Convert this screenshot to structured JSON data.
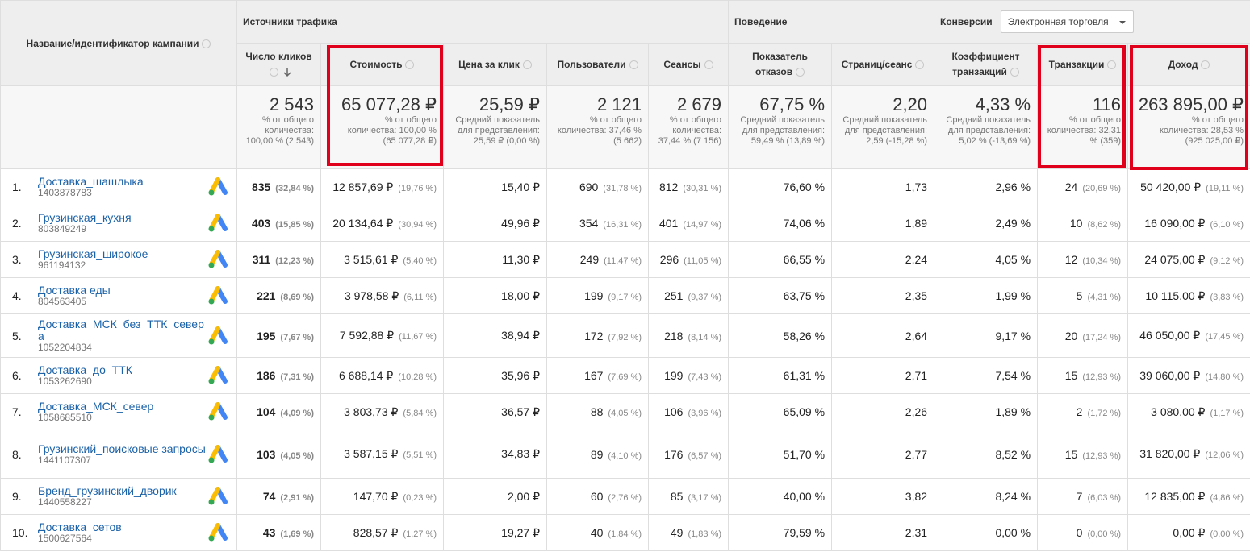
{
  "header": {
    "name_column": "Название/идентификатор кампании",
    "groups": [
      "Источники трафика",
      "Поведение",
      "Конверсии"
    ],
    "dropdown": "Электронная торговля",
    "columns": [
      "Число кликов",
      "Стоимость",
      "Цена за клик",
      "Пользователи",
      "Сеансы",
      "Показатель отказов",
      "Страниц/сеанс",
      "Коэффициент транзакций",
      "Транзакции",
      "Доход"
    ]
  },
  "totals": [
    {
      "value": "2 543",
      "note": "% от общего количества: 100,00 % (2 543)"
    },
    {
      "value": "65 077,28 ₽",
      "note": "% от общего количества: 100,00 % (65 077,28 ₽)"
    },
    {
      "value": "25,59 ₽",
      "note": "Средний показатель для представления: 25,59 ₽ (0,00 %)"
    },
    {
      "value": "2 121",
      "note": "% от общего количества: 37,46 % (5 662)"
    },
    {
      "value": "2 679",
      "note": "% от общего количества: 37,44 % (7 156)"
    },
    {
      "value": "67,75 %",
      "note": "Средний показатель для представления: 59,49 % (13,89 %)"
    },
    {
      "value": "2,20",
      "note": "Средний показатель для представления: 2,59 (-15,28 %)"
    },
    {
      "value": "4,33 %",
      "note": "Средний показатель для представления: 5,02 % (-13,69 %)"
    },
    {
      "value": "116",
      "note": "% от общего количества: 32,31 % (359)"
    },
    {
      "value": "263 895,00 ₽",
      "note": "% от общего количества: 28,53 % (925 025,00 ₽)"
    }
  ],
  "rows": [
    {
      "index": "1.",
      "name": "Доставка_шашлыка",
      "id": "1403878783",
      "cells": [
        [
          "835",
          "(32,84 %)"
        ],
        [
          "12 857,69 ₽",
          "(19,76 %)"
        ],
        [
          "15,40 ₽"
        ],
        [
          "690",
          "(31,78 %)"
        ],
        [
          "812",
          "(30,31 %)"
        ],
        [
          "76,60 %"
        ],
        [
          "1,73"
        ],
        [
          "2,96 %"
        ],
        [
          "24",
          "(20,69 %)"
        ],
        [
          "50 420,00 ₽",
          "(19,11 %)"
        ]
      ]
    },
    {
      "index": "2.",
      "name": "Грузинская_кухня",
      "id": "803849249",
      "cells": [
        [
          "403",
          "(15,85 %)"
        ],
        [
          "20 134,64 ₽",
          "(30,94 %)"
        ],
        [
          "49,96 ₽"
        ],
        [
          "354",
          "(16,31 %)"
        ],
        [
          "401",
          "(14,97 %)"
        ],
        [
          "74,06 %"
        ],
        [
          "1,89"
        ],
        [
          "2,49 %"
        ],
        [
          "10",
          "(8,62 %)"
        ],
        [
          "16 090,00 ₽",
          "(6,10 %)"
        ]
      ]
    },
    {
      "index": "3.",
      "name": "Грузинская_широкое",
      "id": "961194132",
      "cells": [
        [
          "311",
          "(12,23 %)"
        ],
        [
          "3 515,61 ₽",
          "(5,40 %)"
        ],
        [
          "11,30 ₽"
        ],
        [
          "249",
          "(11,47 %)"
        ],
        [
          "296",
          "(11,05 %)"
        ],
        [
          "66,55 %"
        ],
        [
          "2,24"
        ],
        [
          "4,05 %"
        ],
        [
          "12",
          "(10,34 %)"
        ],
        [
          "24 075,00 ₽",
          "(9,12 %)"
        ]
      ]
    },
    {
      "index": "4.",
      "name": "Доставка еды",
      "id": "804563405",
      "cells": [
        [
          "221",
          "(8,69 %)"
        ],
        [
          "3 978,58 ₽",
          "(6,11 %)"
        ],
        [
          "18,00 ₽"
        ],
        [
          "199",
          "(9,17 %)"
        ],
        [
          "251",
          "(9,37 %)"
        ],
        [
          "63,75 %"
        ],
        [
          "2,35"
        ],
        [
          "1,99 %"
        ],
        [
          "5",
          "(4,31 %)"
        ],
        [
          "10 115,00 ₽",
          "(3,83 %)"
        ]
      ]
    },
    {
      "index": "5.",
      "name": "Доставка_МСК_без_ТТК_севера",
      "id": "1052204834",
      "cells": [
        [
          "195",
          "(7,67 %)"
        ],
        [
          "7 592,88 ₽",
          "(11,67 %)"
        ],
        [
          "38,94 ₽"
        ],
        [
          "172",
          "(7,92 %)"
        ],
        [
          "218",
          "(8,14 %)"
        ],
        [
          "58,26 %"
        ],
        [
          "2,64"
        ],
        [
          "9,17 %"
        ],
        [
          "20",
          "(17,24 %)"
        ],
        [
          "46 050,00 ₽",
          "(17,45 %)"
        ]
      ]
    },
    {
      "index": "6.",
      "name": "Доставка_до_ТТК",
      "id": "1053262690",
      "cells": [
        [
          "186",
          "(7,31 %)"
        ],
        [
          "6 688,14 ₽",
          "(10,28 %)"
        ],
        [
          "35,96 ₽"
        ],
        [
          "167",
          "(7,69 %)"
        ],
        [
          "199",
          "(7,43 %)"
        ],
        [
          "61,31 %"
        ],
        [
          "2,71"
        ],
        [
          "7,54 %"
        ],
        [
          "15",
          "(12,93 %)"
        ],
        [
          "39 060,00 ₽",
          "(14,80 %)"
        ]
      ]
    },
    {
      "index": "7.",
      "name": "Доставка_МСК_север",
      "id": "1058685510",
      "cells": [
        [
          "104",
          "(4,09 %)"
        ],
        [
          "3 803,73 ₽",
          "(5,84 %)"
        ],
        [
          "36,57 ₽"
        ],
        [
          "88",
          "(4,05 %)"
        ],
        [
          "106",
          "(3,96 %)"
        ],
        [
          "65,09 %"
        ],
        [
          "2,26"
        ],
        [
          "1,89 %"
        ],
        [
          "2",
          "(1,72 %)"
        ],
        [
          "3 080,00 ₽",
          "(1,17 %)"
        ]
      ]
    },
    {
      "index": "8.",
      "name": "Грузинский_поисковые запросы",
      "id": "1441107307",
      "cells": [
        [
          "103",
          "(4,05 %)"
        ],
        [
          "3 587,15 ₽",
          "(5,51 %)"
        ],
        [
          "34,83 ₽"
        ],
        [
          "89",
          "(4,10 %)"
        ],
        [
          "176",
          "(6,57 %)"
        ],
        [
          "51,70 %"
        ],
        [
          "2,77"
        ],
        [
          "8,52 %"
        ],
        [
          "15",
          "(12,93 %)"
        ],
        [
          "31 820,00 ₽",
          "(12,06 %)"
        ]
      ]
    },
    {
      "index": "9.",
      "name": "Бренд_грузинский_дворик",
      "id": "1440558227",
      "cells": [
        [
          "74",
          "(2,91 %)"
        ],
        [
          "147,70 ₽",
          "(0,23 %)"
        ],
        [
          "2,00 ₽"
        ],
        [
          "60",
          "(2,76 %)"
        ],
        [
          "85",
          "(3,17 %)"
        ],
        [
          "40,00 %"
        ],
        [
          "3,82"
        ],
        [
          "8,24 %"
        ],
        [
          "7",
          "(6,03 %)"
        ],
        [
          "12 835,00 ₽",
          "(4,86 %)"
        ]
      ]
    },
    {
      "index": "10.",
      "name": "Доставка_сетов",
      "id": "1500627564",
      "cells": [
        [
          "43",
          "(1,69 %)"
        ],
        [
          "828,57 ₽",
          "(1,27 %)"
        ],
        [
          "19,27 ₽"
        ],
        [
          "40",
          "(1,84 %)"
        ],
        [
          "49",
          "(1,83 %)"
        ],
        [
          "79,59 %"
        ],
        [
          "2,31"
        ],
        [
          "0,00 %"
        ],
        [
          "0",
          "(0,00 %)"
        ],
        [
          "0,00 ₽",
          "(0,00 %)"
        ]
      ]
    }
  ]
}
